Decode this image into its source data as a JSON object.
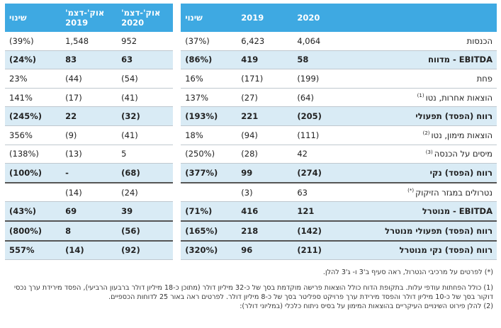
{
  "header": {
    "label": "",
    "col_2020": "2020",
    "col_2019": "2019",
    "col_change": "שינוי",
    "col_q_2020": "אוק'-דצמ' 2020",
    "col_q_2019": "אוק'-דצמ' 2019",
    "col_q_change": "שינוי"
  },
  "rows": [
    {
      "label": "הכנסות",
      "note": "",
      "y2020": "4,064",
      "y2019": "6,423",
      "change": "(37%)",
      "q2020": "952",
      "q2019": "1,548",
      "qchange": "(39%)"
    },
    {
      "label": "EBITDA - מדווח",
      "note": "",
      "y2020": "58",
      "y2019": "419",
      "change": "(86%)",
      "q2020": "63",
      "q2019": "83",
      "qchange": "(24%)"
    },
    {
      "label": "פחת",
      "note": "",
      "y2020": "(199)",
      "y2019": "(171)",
      "change": "16%",
      "q2020": "(54)",
      "q2019": "(44)",
      "qchange": "23%"
    },
    {
      "label": "הוצאות אחרות, נטו",
      "note": "(1)",
      "y2020": "(64)",
      "y2019": "(27)",
      "change": "137%",
      "q2020": "(41)",
      "q2019": "(17)",
      "qchange": "141%"
    },
    {
      "label": "רווח (הפסד) תפעולי",
      "note": "",
      "y2020": "(205)",
      "y2019": "221",
      "change": "(193%)",
      "q2020": "(32)",
      "q2019": "22",
      "qchange": "(245%)"
    },
    {
      "label": "הוצאות מימון, נטו",
      "note": "(2)",
      "y2020": "(111)",
      "y2019": "(94)",
      "change": "18%",
      "q2020": "(41)",
      "q2019": "(9)",
      "qchange": "356%"
    },
    {
      "label": "מיסים על הכנסה",
      "note": "(3)",
      "y2020": "42",
      "y2019": "(28)",
      "change": "(250%)",
      "q2020": "5",
      "q2019": "(13)",
      "qchange": "(138%)"
    },
    {
      "label": "רווח (הפסד) נקי",
      "note": "",
      "y2020": "(274)",
      "y2019": "99",
      "change": "(377%)",
      "q2020": "(68)",
      "q2019": "-",
      "qchange": "(100%)"
    },
    {
      "label": "נטרולים במגזר הזיקוק",
      "note": "(*)",
      "y2020": "63",
      "y2019": "(3)",
      "change": "",
      "q2020": "(24)",
      "q2019": "(14)",
      "qchange": ""
    },
    {
      "label": "EBITDA - מנוטרל",
      "note": "",
      "y2020": "121",
      "y2019": "416",
      "change": "(71%)",
      "q2020": "39",
      "q2019": "69",
      "qchange": "(43%)"
    },
    {
      "label": "רווח (הפסד) תפעולי מנוטרל",
      "note": "",
      "y2020": "(142)",
      "y2019": "218",
      "change": "(165%)",
      "q2020": "(56)",
      "q2019": "8",
      "qchange": "(800%)"
    },
    {
      "label": "רווח (הפסד) נקי מנוטרל",
      "note": "",
      "y2020": "(211)",
      "y2019": "96",
      "change": "(320%)",
      "q2020": "(92)",
      "q2019": "(14)",
      "qchange": "557%"
    }
  ],
  "notes": {
    "star": "(*) לפרטים על מרכיבי הנטרול, ראה סעיף ב'3 ו- ג'3 להלן.",
    "n1": "(1) כולל הפחתות עודפי עלות. בתקופת הדוח כולל הוצאות פרישה מוקדמת בסך של כ-32 מיליון דולר (מתוכן כ-18 מיליון דולר ברבעון הרביעי), הפסד מירידת ערך נכסי דוקור בסך של כ-10 מיליון דולר והפסד מירידת ערך פרויקט ספליטר בסך של כ-8 מיליון דולר. לפרטים ראה באור 25 לדוחות הכספיים.",
    "n2": "(2) להלן פירוט השינויים העיקריים בהוצאות המימון על בסיס ניתוח כלכלי (במליוני דולר):"
  }
}
